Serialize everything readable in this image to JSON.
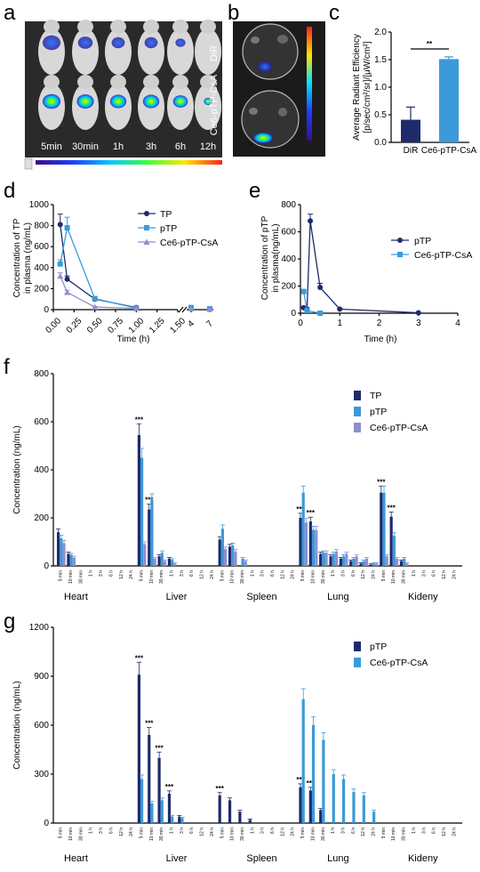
{
  "panels": {
    "a": {
      "letter": "a",
      "row_labels": [
        "DiR",
        "Ce6-pTP-CsA"
      ],
      "time_labels": [
        "5min",
        "30min",
        "1h",
        "3h",
        "6h",
        "12h"
      ]
    },
    "b": {
      "letter": "b"
    },
    "c": {
      "letter": "c"
    },
    "d": {
      "letter": "d"
    },
    "e": {
      "letter": "e"
    },
    "f": {
      "letter": "f"
    },
    "g": {
      "letter": "g"
    }
  },
  "colors": {
    "dark": "#1f2a6b",
    "light": "#3a9ad9",
    "lavender": "#8e8ed0",
    "mouse_bg": "#2a2a2a"
  },
  "chart_data": [
    {
      "id": "c",
      "type": "bar",
      "categories": [
        "DiR",
        "Ce6-pTP-CsA"
      ],
      "values": [
        0.41,
        1.51
      ],
      "errors": [
        0.23,
        0.04
      ],
      "ylabel": "Average Radiant Efficiency [p/sec/cm²/sr]/[μW/cm²]",
      "ylim": [
        0,
        2.0
      ],
      "yticks": [
        "0.0",
        "0.5",
        "1.0",
        "1.5",
        "2.0"
      ],
      "annotation": "**"
    },
    {
      "id": "d",
      "type": "line",
      "xlabel": "Time (h)",
      "ylabel": "Concentration of TP in plasma (ng/mL)",
      "ylim": [
        0,
        1000
      ],
      "yticks": [
        "0",
        "200",
        "400",
        "600",
        "800",
        "1000"
      ],
      "xticks_left": [
        "0.00",
        "0.25",
        "0.50",
        "0.75",
        "1.00",
        "1.25",
        "1.50"
      ],
      "xticks_right": [
        "4",
        "7"
      ],
      "series": [
        {
          "name": "TP",
          "x": [
            0.083,
            0.167,
            0.5,
            1.0,
            4,
            7
          ],
          "y": [
            810,
            290,
            100,
            20,
            15,
            8
          ],
          "err": [
            100,
            30,
            20,
            5,
            3,
            2
          ]
        },
        {
          "name": "pTP",
          "x": [
            0.083,
            0.167,
            0.5,
            1.0,
            4,
            7
          ],
          "y": [
            435,
            780,
            105,
            15,
            20,
            8
          ],
          "err": [
            40,
            100,
            20,
            5,
            4,
            2
          ]
        },
        {
          "name": "Ce6-pTP-CsA",
          "x": [
            0.083,
            0.167,
            0.5,
            1.0,
            4,
            7
          ],
          "y": [
            320,
            165,
            25,
            12,
            10,
            5
          ],
          "err": [
            30,
            20,
            5,
            3,
            2,
            2
          ]
        }
      ]
    },
    {
      "id": "e",
      "type": "line",
      "xlabel": "Time (h)",
      "ylabel": "Concentration of pTP in plasma(ng/mL)",
      "ylim": [
        0,
        800
      ],
      "xlim": [
        0,
        4
      ],
      "yticks": [
        "0",
        "200",
        "400",
        "600",
        "800"
      ],
      "xticks": [
        "0",
        "1",
        "2",
        "3",
        "4"
      ],
      "series": [
        {
          "name": "pTP",
          "x": [
            0.083,
            0.167,
            0.25,
            0.5,
            1.0,
            3.0
          ],
          "y": [
            40,
            30,
            680,
            190,
            30,
            3
          ],
          "err": [
            10,
            10,
            50,
            30,
            5,
            2
          ]
        },
        {
          "name": "Ce6-pTP-CsA",
          "x": [
            0.083,
            0.167,
            0.5
          ],
          "y": [
            160,
            20,
            0
          ],
          "err": [
            10,
            5,
            2
          ]
        }
      ]
    },
    {
      "id": "f",
      "type": "bar",
      "ylabel": "Concentration (ng/mL)",
      "ylim": [
        0,
        800
      ],
      "yticks": [
        "0",
        "200",
        "400",
        "600",
        "800"
      ],
      "organs": [
        "Heart",
        "Liver",
        "Spleen",
        "Lung",
        "Kideny"
      ],
      "time_labels": [
        "5 min",
        "10 min",
        "30 min",
        "1 h",
        "3 h",
        "6 h",
        "12 h",
        "24 h"
      ],
      "series": [
        {
          "name": "TP",
          "values": [
            [
              140,
              50,
              0,
              0,
              0,
              0,
              0,
              0
            ],
            [
              545,
              235,
              40,
              30,
              0,
              0,
              0,
              0
            ],
            [
              110,
              80,
              0,
              0,
              0,
              0,
              0,
              0
            ],
            [
              200,
              185,
              50,
              40,
              30,
              20,
              10,
              5
            ],
            [
              305,
              205,
              20,
              0,
              0,
              0,
              0,
              0
            ]
          ]
        },
        {
          "name": "pTP",
          "values": [
            [
              115,
              45,
              0,
              0,
              0,
              0,
              0,
              0
            ],
            [
              450,
              275,
              55,
              25,
              0,
              0,
              0,
              0
            ],
            [
              155,
              85,
              30,
              0,
              0,
              0,
              0,
              0
            ],
            [
              305,
              150,
              55,
              50,
              40,
              30,
              20,
              10
            ],
            [
              305,
              125,
              30,
              0,
              0,
              0,
              0,
              0
            ]
          ]
        },
        {
          "name": "Ce6-pTP-CsA",
          "values": [
            [
              95,
              35,
              0,
              0,
              0,
              0,
              0,
              0
            ],
            [
              90,
              30,
              20,
              10,
              0,
              0,
              0,
              0
            ],
            [
              70,
              60,
              20,
              0,
              0,
              0,
              0,
              0
            ],
            [
              180,
              150,
              55,
              60,
              50,
              40,
              30,
              10
            ],
            [
              40,
              30,
              10,
              0,
              0,
              0,
              0,
              0
            ]
          ]
        }
      ],
      "annotation": "***"
    },
    {
      "id": "g",
      "type": "bar",
      "ylabel": "Concentration (ng/mL)",
      "ylim": [
        0,
        1200
      ],
      "yticks": [
        "0",
        "300",
        "600",
        "900",
        "1200"
      ],
      "organs": [
        "Heart",
        "Liver",
        "Spleen",
        "Lung",
        "Kideny"
      ],
      "time_labels": [
        "5 min",
        "10 min",
        "30 min",
        "1 h",
        "3 h",
        "6 h",
        "12 h",
        "24 h"
      ],
      "series": [
        {
          "name": "pTP",
          "values": [
            [
              0,
              0,
              0,
              0,
              0,
              0,
              0,
              0
            ],
            [
              910,
              540,
              400,
              180,
              40,
              0,
              0,
              0
            ],
            [
              170,
              140,
              70,
              20,
              0,
              0,
              0,
              0
            ],
            [
              220,
              200,
              80,
              0,
              0,
              0,
              0,
              0
            ],
            [
              0,
              0,
              0,
              0,
              0,
              0,
              0,
              0
            ]
          ]
        },
        {
          "name": "Ce6-pTP-CsA",
          "values": [
            [
              0,
              0,
              0,
              0,
              0,
              0,
              0,
              0
            ],
            [
              270,
              120,
              140,
              40,
              30,
              0,
              0,
              0
            ],
            [
              0,
              0,
              0,
              0,
              0,
              0,
              0,
              0
            ],
            [
              760,
              600,
              510,
              300,
              270,
              190,
              170,
              70
            ],
            [
              0,
              0,
              0,
              0,
              0,
              0,
              0,
              0
            ]
          ]
        }
      ],
      "annotation": "***"
    }
  ]
}
